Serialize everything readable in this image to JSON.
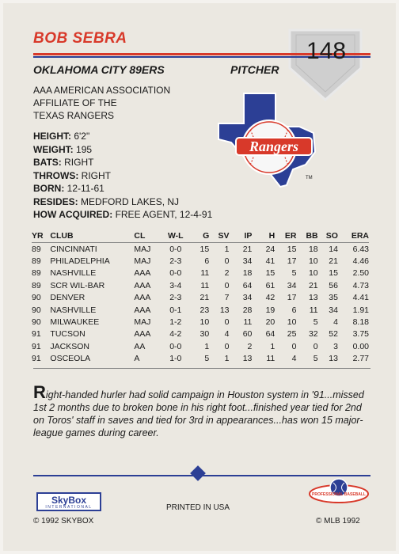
{
  "player": {
    "name": "BOB SEBRA",
    "team": "OKLAHOMA CITY 89ERS",
    "position": "PITCHER",
    "card_number": "148"
  },
  "affiliation": [
    "AAA AMERICAN ASSOCIATION",
    "AFFILIATE OF THE",
    "TEXAS RANGERS"
  ],
  "logo": {
    "text": "Rangers",
    "tm": "TM"
  },
  "bio": [
    {
      "label": "HEIGHT:",
      "value": "6'2\""
    },
    {
      "label": "WEIGHT:",
      "value": "195"
    },
    {
      "label": "BATS:",
      "value": "RIGHT"
    },
    {
      "label": "THROWS:",
      "value": "RIGHT"
    },
    {
      "label": "BORN:",
      "value": "12-11-61"
    },
    {
      "label": "RESIDES:",
      "value": "MEDFORD LAKES, NJ"
    },
    {
      "label": "HOW ACQUIRED:",
      "value": "FREE AGENT, 12-4-91"
    }
  ],
  "stats": {
    "headers": [
      "YR",
      "CLUB",
      "CL",
      "W-L",
      "G",
      "SV",
      "IP",
      "H",
      "ER",
      "BB",
      "SO",
      "ERA"
    ],
    "rows": [
      [
        "89",
        "CINCINNATI",
        "MAJ",
        "0-0",
        "15",
        "1",
        "21",
        "24",
        "15",
        "18",
        "14",
        "6.43"
      ],
      [
        "89",
        "PHILADELPHIA",
        "MAJ",
        "2-3",
        "6",
        "0",
        "34",
        "41",
        "17",
        "10",
        "21",
        "4.46"
      ],
      [
        "89",
        "NASHVILLE",
        "AAA",
        "0-0",
        "11",
        "2",
        "18",
        "15",
        "5",
        "10",
        "15",
        "2.50"
      ],
      [
        "89",
        "SCR WIL-BAR",
        "AAA",
        "3-4",
        "11",
        "0",
        "64",
        "61",
        "34",
        "21",
        "56",
        "4.73"
      ],
      [
        "90",
        "DENVER",
        "AAA",
        "2-3",
        "21",
        "7",
        "34",
        "42",
        "17",
        "13",
        "35",
        "4.41"
      ],
      [
        "90",
        "NASHVILLE",
        "AAA",
        "0-1",
        "23",
        "13",
        "28",
        "19",
        "6",
        "11",
        "34",
        "1.91"
      ],
      [
        "90",
        "MILWAUKEE",
        "MAJ",
        "1-2",
        "10",
        "0",
        "11",
        "20",
        "10",
        "5",
        "4",
        "8.18"
      ],
      [
        "91",
        "TUCSON",
        "AAA",
        "4-2",
        "30",
        "4",
        "60",
        "64",
        "25",
        "32",
        "52",
        "3.75"
      ],
      [
        "91",
        "JACKSON",
        "AA",
        "0-0",
        "1",
        "0",
        "2",
        "1",
        "0",
        "0",
        "3",
        "0.00"
      ],
      [
        "91",
        "OSCEOLA",
        "A",
        "1-0",
        "5",
        "1",
        "13",
        "11",
        "4",
        "5",
        "13",
        "2.77"
      ]
    ]
  },
  "narrative": {
    "drop": "R",
    "text": "ight-handed hurler had solid campaign in Houston system in '91...missed 1st 2 months due to broken bone in his right foot...finished year tied for 2nd on Toros' staff in saves and tied for 3rd in appearances...has won 15 major-league games during career."
  },
  "footer": {
    "skybox": "SkyBox",
    "skybox_sub": "INTERNATIONAL",
    "printed": "PRINTED IN USA",
    "copyright_left": "© 1992 SKYBOX",
    "copyright_right": "© MLB 1992",
    "pbl_text": "PROFESSIONAL BASEBALL"
  },
  "colors": {
    "red": "#d8392a",
    "blue": "#2c3f95",
    "card": "#ebe8e1"
  }
}
